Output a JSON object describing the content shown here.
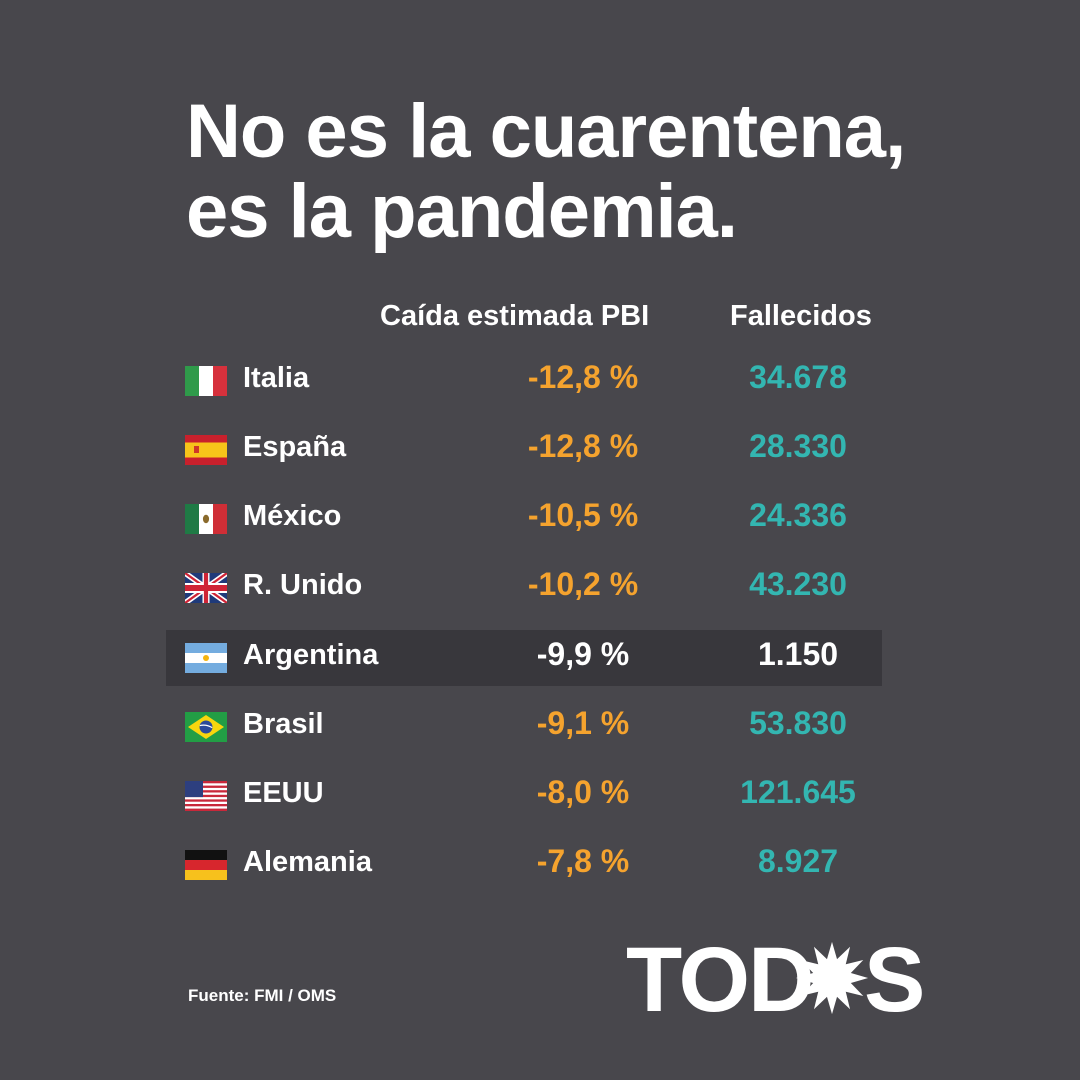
{
  "title": {
    "line1": "No es la cuarentena,",
    "line2": "es la pandemia."
  },
  "table": {
    "headers": {
      "pbi": "Caída estimada PBI",
      "deaths": "Fallecidos"
    },
    "rows": [
      {
        "country": "Italia",
        "flag": "italy-flag-icon",
        "pbi": "-12,8 %",
        "deaths": "34.678"
      },
      {
        "country": "España",
        "flag": "spain-flag-icon",
        "pbi": "-12,8 %",
        "deaths": "28.330"
      },
      {
        "country": "México",
        "flag": "mexico-flag-icon",
        "pbi": "-10,5 %",
        "deaths": "24.336"
      },
      {
        "country": "R. Unido",
        "flag": "uk-flag-icon",
        "pbi": "-10,2 %",
        "deaths": "43.230"
      },
      {
        "country": "Argentina",
        "flag": "argentina-flag-icon",
        "pbi": "-9,9 %",
        "deaths": "1.150",
        "highlighted": true
      },
      {
        "country": "Brasil",
        "flag": "brazil-flag-icon",
        "pbi": "-9,1 %",
        "deaths": "53.830"
      },
      {
        "country": "EEUU",
        "flag": "usa-flag-icon",
        "pbi": "-8,0 %",
        "deaths": "121.645"
      },
      {
        "country": "Alemania",
        "flag": "germany-flag-icon",
        "pbi": "-7,8 %",
        "deaths": "8.927"
      }
    ]
  },
  "source": "Fuente: FMI / OMS",
  "logo": {
    "left": "TOD",
    "right": "S",
    "icon": "sun-icon"
  },
  "colors": {
    "background": "#48474c",
    "highlight_row": "#38373c",
    "pbi": "#f5a32e",
    "deaths": "#33b6b1",
    "text": "#ffffff"
  }
}
